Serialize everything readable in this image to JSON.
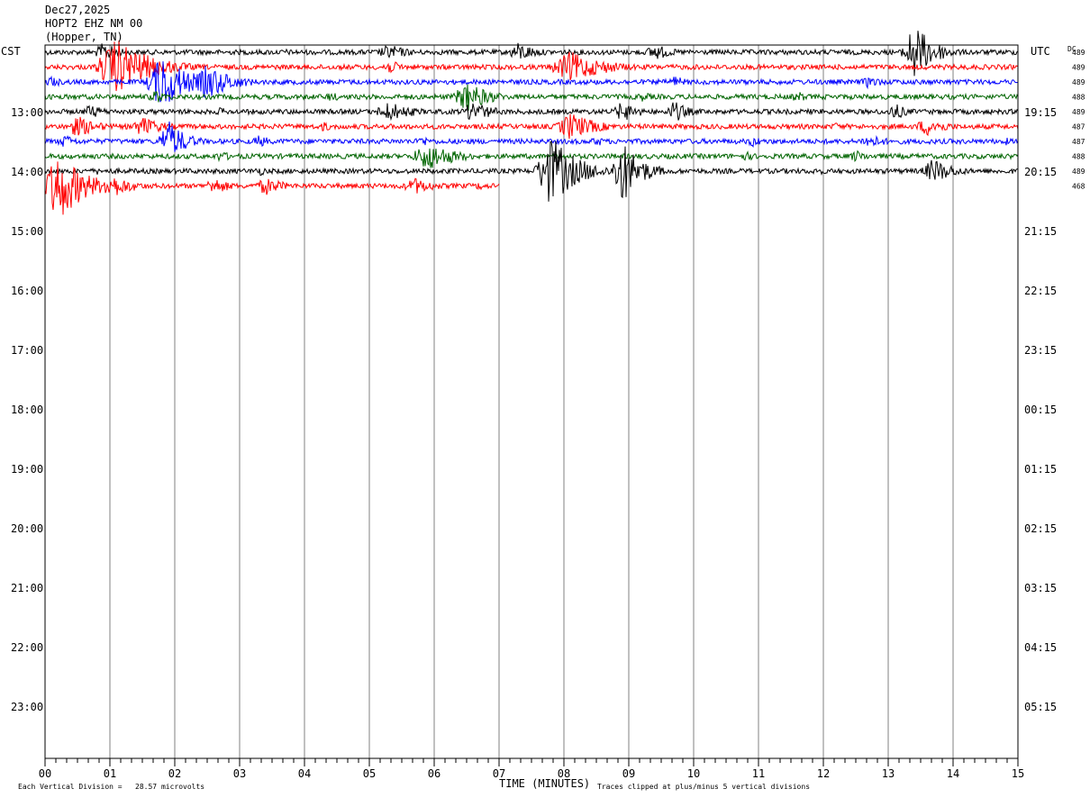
{
  "header": {
    "date": "Dec27,2025",
    "station": "HOPT2 EHZ NM 00",
    "location": "(Hopper, TN)"
  },
  "labels": {
    "left_tz": "CST",
    "right_tz": "UTC",
    "dc": "DC",
    "x_title": "TIME (MINUTES)",
    "scale_note": "Each Vertical Division =   28.57 microvolts",
    "clip_note": "Traces clipped at plus/minus 5 vertical divisions"
  },
  "colors": {
    "trace_cycle": [
      "#000000",
      "#ff0000",
      "#0000ff",
      "#006400"
    ],
    "grid": "#808080",
    "axis": "#000000"
  },
  "chart_data": {
    "type": "line",
    "title": "",
    "xlabel": "TIME (MINUTES)",
    "xlim": [
      0,
      15
    ],
    "x_ticks": [
      "00",
      "01",
      "02",
      "03",
      "04",
      "05",
      "06",
      "07",
      "08",
      "09",
      "10",
      "11",
      "12",
      "13",
      "14",
      "15"
    ],
    "left_hour_labels": [
      "13:00",
      "14:00",
      "15:00",
      "16:00",
      "17:00",
      "18:00",
      "19:00",
      "20:00",
      "21:00",
      "22:00",
      "23:00"
    ],
    "right_hour_labels": [
      "19:15",
      "20:15",
      "21:15",
      "22:15",
      "23:15",
      "00:15",
      "01:15",
      "02:15",
      "03:15",
      "04:15",
      "05:15"
    ],
    "dc_offsets": [
      "489",
      "489",
      "489",
      "488",
      "489",
      "487",
      "487",
      "488",
      "489",
      "468"
    ],
    "traces": [
      {
        "row": 0,
        "color": "black",
        "duration_min": 15,
        "events": [
          [
            0.9,
            1.4,
            1.2
          ],
          [
            3.7,
            0.5,
            1.0
          ],
          [
            5.3,
            1.1,
            1.6
          ],
          [
            7.3,
            1.4,
            1.4
          ],
          [
            9.4,
            1.2,
            1.3
          ],
          [
            11.1,
            0.4,
            0.9
          ],
          [
            13.4,
            4.0,
            1.4
          ]
        ]
      },
      {
        "row": 1,
        "color": "red",
        "duration_min": 15,
        "events": [
          [
            1.1,
            4.0,
            2.4
          ],
          [
            1.8,
            1.5,
            1.0
          ],
          [
            5.3,
            1.0,
            1.2
          ],
          [
            8.1,
            2.2,
            2.5
          ],
          [
            10.1,
            0.5,
            0.8
          ],
          [
            13.0,
            0.4,
            0.8
          ]
        ]
      },
      {
        "row": 2,
        "color": "blue",
        "duration_min": 15,
        "events": [
          [
            0.1,
            0.9,
            0.8
          ],
          [
            1.8,
            4.0,
            1.8
          ],
          [
            2.5,
            2.5,
            1.8
          ],
          [
            9.7,
            0.9,
            1.0
          ],
          [
            12.7,
            0.9,
            1.2
          ]
        ]
      },
      {
        "row": 3,
        "color": "green",
        "duration_min": 15,
        "events": [
          [
            1.7,
            1.0,
            1.0
          ],
          [
            4.4,
            0.7,
            1.0
          ],
          [
            6.5,
            2.2,
            1.6
          ],
          [
            9.2,
            0.7,
            1.1
          ],
          [
            11.6,
            0.8,
            1.0
          ]
        ]
      },
      {
        "row": 4,
        "color": "black",
        "duration_min": 15,
        "events": [
          [
            0.7,
            1.0,
            1.2
          ],
          [
            2.7,
            0.6,
            1.0
          ],
          [
            5.3,
            1.4,
            1.8
          ],
          [
            6.6,
            1.5,
            1.5
          ],
          [
            8.9,
            1.5,
            1.2
          ],
          [
            9.7,
            1.6,
            1.0
          ],
          [
            13.1,
            1.2,
            1.0
          ]
        ]
      },
      {
        "row": 5,
        "color": "red",
        "duration_min": 15,
        "events": [
          [
            0.5,
            1.5,
            1.6
          ],
          [
            1.5,
            1.4,
            1.6
          ],
          [
            4.3,
            0.7,
            1.0
          ],
          [
            8.1,
            2.0,
            1.8
          ],
          [
            12.2,
            0.6,
            1.0
          ],
          [
            13.6,
            1.3,
            1.6
          ]
        ]
      },
      {
        "row": 6,
        "color": "blue",
        "duration_min": 15,
        "events": [
          [
            0.3,
            1.0,
            1.0
          ],
          [
            1.9,
            3.0,
            1.2
          ],
          [
            3.3,
            0.9,
            1.0
          ],
          [
            5.8,
            0.8,
            1.0
          ],
          [
            8.5,
            0.7,
            1.0
          ],
          [
            10.9,
            0.8,
            1.1
          ],
          [
            12.7,
            1.0,
            1.4
          ],
          [
            14.8,
            0.6,
            0.8
          ]
        ]
      },
      {
        "row": 7,
        "color": "green",
        "duration_min": 15,
        "events": [
          [
            2.7,
            0.8,
            1.0
          ],
          [
            5.9,
            2.0,
            2.0
          ],
          [
            10.8,
            0.7,
            1.0
          ],
          [
            12.5,
            0.9,
            1.0
          ]
        ]
      },
      {
        "row": 8,
        "color": "black",
        "duration_min": 15,
        "events": [
          [
            0.8,
            0.5,
            1.0
          ],
          [
            3.3,
            0.7,
            1.0
          ],
          [
            7.8,
            5.0,
            1.8
          ],
          [
            8.9,
            4.5,
            1.3
          ],
          [
            11.9,
            0.6,
            1.0
          ],
          [
            13.7,
            1.8,
            1.5
          ]
        ]
      },
      {
        "row": 9,
        "color": "red",
        "duration_min": 7,
        "events": [
          [
            0.2,
            5.0,
            1.8
          ],
          [
            1.0,
            1.8,
            1.6
          ],
          [
            2.6,
            1.2,
            1.3
          ],
          [
            3.4,
            1.3,
            1.4
          ],
          [
            5.7,
            1.2,
            1.6
          ],
          [
            6.7,
            0.6,
            1.0
          ]
        ]
      }
    ]
  }
}
